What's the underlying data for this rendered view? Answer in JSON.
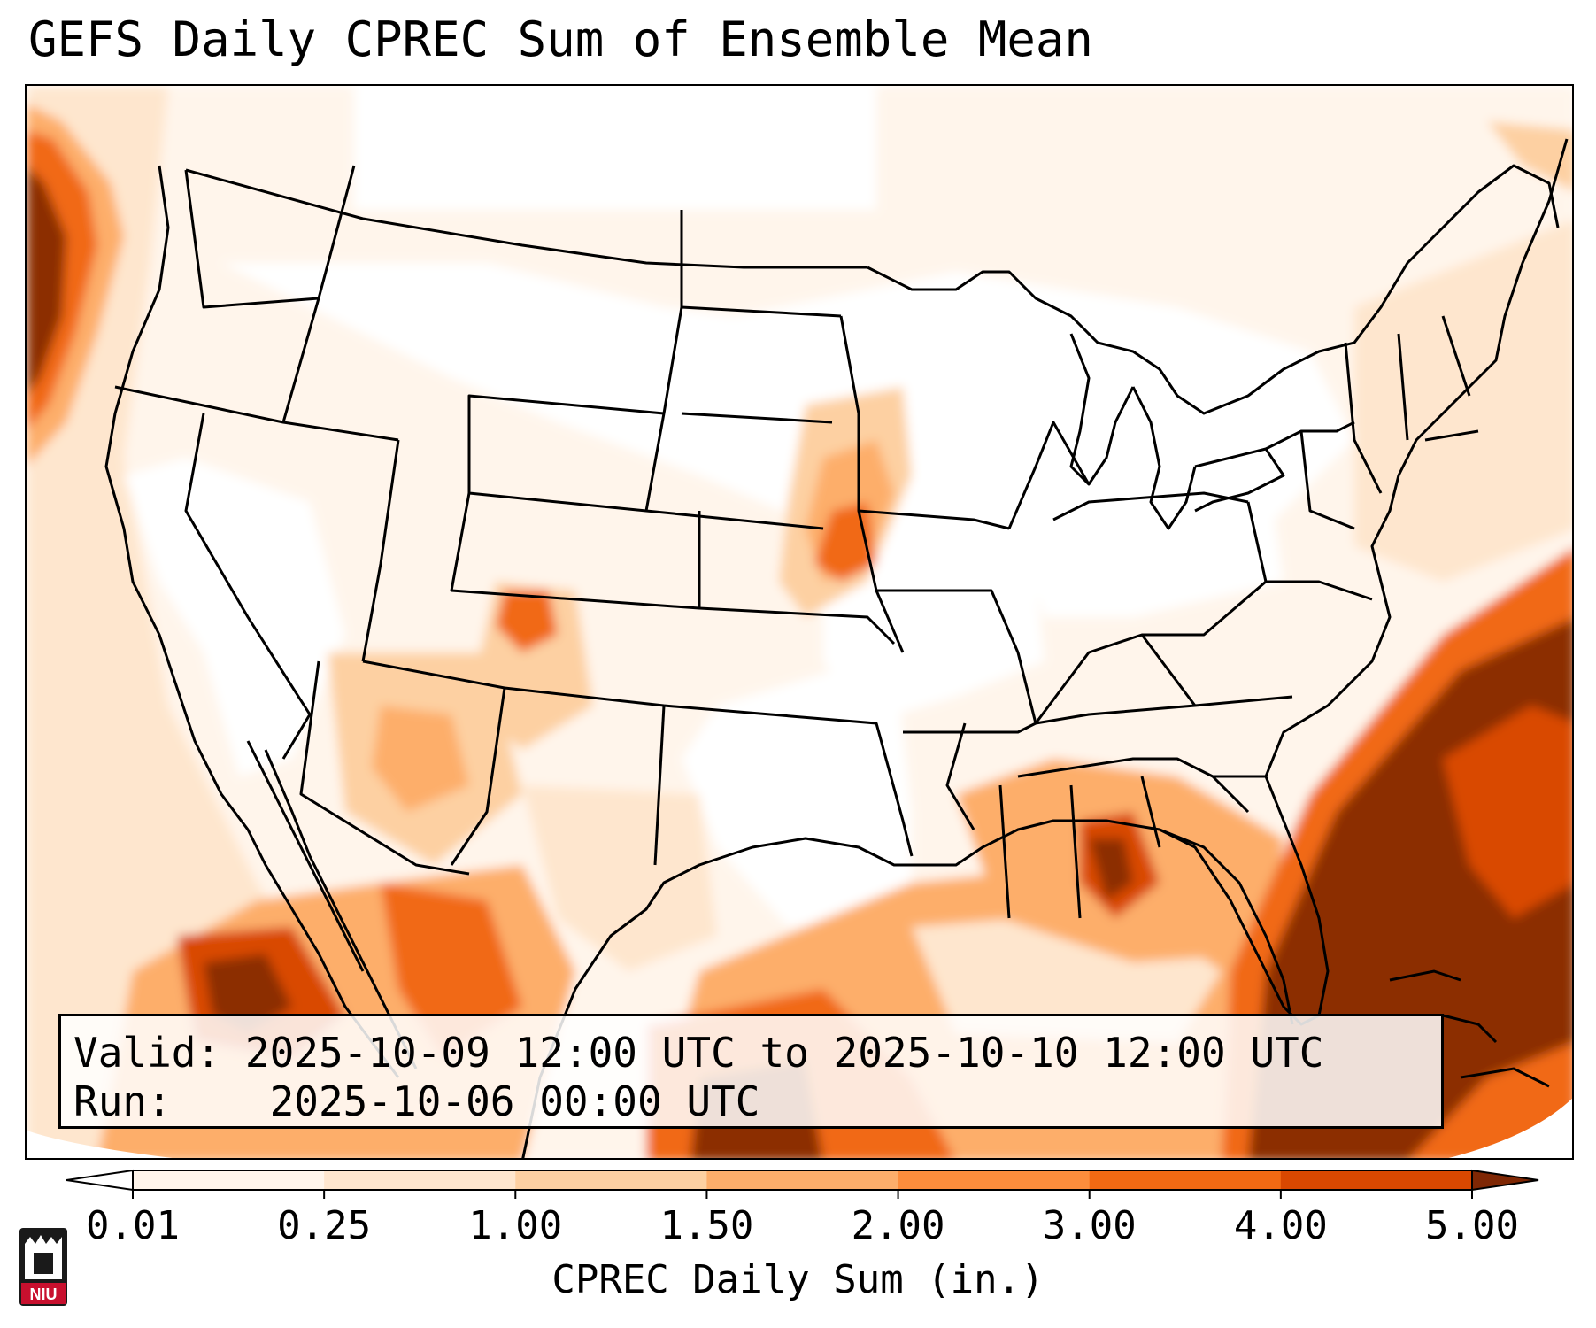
{
  "title": "GEFS Daily CPREC Sum of Ensemble Mean",
  "info": {
    "valid_label": "Valid:",
    "valid_value": "2025-10-09 12:00 UTC to 2025-10-10 12:00 UTC",
    "run_label": "Run:",
    "run_value": "2025-10-06 00:00 UTC"
  },
  "colorbar": {
    "label": "CPREC Daily Sum (in.)",
    "ticks": [
      "0.01",
      "0.25",
      "1.00",
      "1.50",
      "2.00",
      "3.00",
      "4.00",
      "5.00"
    ],
    "colors": [
      "#fff5eb",
      "#fee6ce",
      "#fdd0a2",
      "#fdae6b",
      "#fd8d3c",
      "#f16913",
      "#d94801",
      "#8c2d04"
    ],
    "under_color": "#ffffff",
    "over_color": "#7f2704"
  },
  "logo": {
    "text": "NIU",
    "color": "#c8102e"
  }
}
